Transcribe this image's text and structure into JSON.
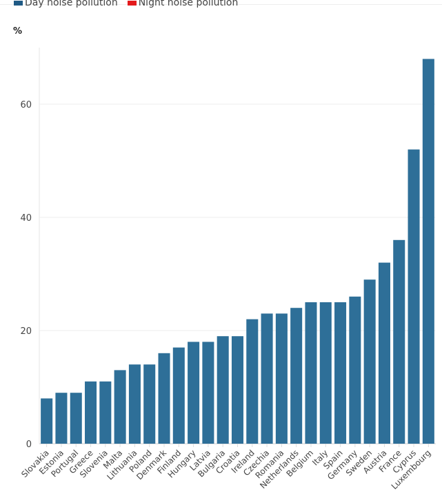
{
  "legend": [
    {
      "label": "Day noise pollution",
      "color": "#2e6f98"
    },
    {
      "label": "Night noise pollution",
      "color": "#e41a1c"
    }
  ],
  "chart_data": {
    "type": "bar",
    "unit_label": "%",
    "ylim": [
      0,
      70
    ],
    "yticks": [
      0,
      20,
      40,
      60
    ],
    "grid": true,
    "legend_position": "top-left",
    "bar_color": "#2e6f98",
    "categories": [
      "Slovakia",
      "Estonia",
      "Portugal",
      "Greece",
      "Slovenia",
      "Malta",
      "Lithuania",
      "Poland",
      "Denmark",
      "Finland",
      "Hungary",
      "Latvia",
      "Bulgaria",
      "Croatia",
      "Ireland",
      "Czechia",
      "Romania",
      "Netherlands",
      "Belgium",
      "Italy",
      "Spain",
      "Germany",
      "Sweden",
      "Austria",
      "France",
      "Cyprus",
      "Luxembourg"
    ],
    "series": [
      {
        "name": "Day noise pollution",
        "values": [
          8,
          9,
          9,
          11,
          11,
          13,
          14,
          14,
          16,
          17,
          18,
          18,
          19,
          19,
          22,
          23,
          23,
          24,
          25,
          25,
          25,
          26,
          29,
          32,
          36,
          52,
          68
        ]
      }
    ]
  }
}
